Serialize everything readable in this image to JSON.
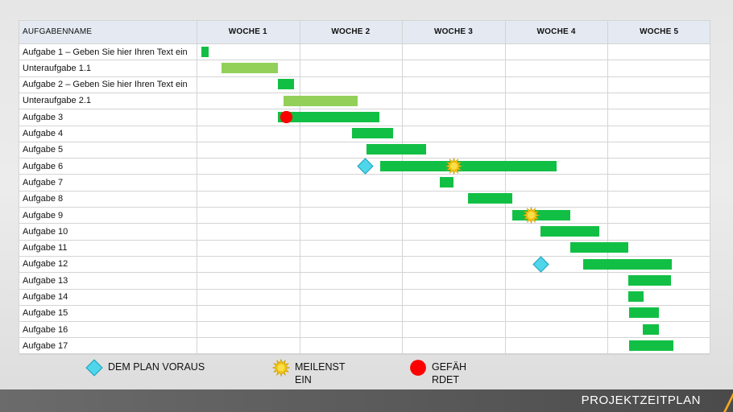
{
  "page": {
    "footer_title": "PROJEKTZEITPLAN"
  },
  "chart_data": {
    "type": "gantt",
    "task_column_header": "AUFGABENNAME",
    "weeks": [
      "WOCHE 1",
      "WOCHE 2",
      "WOCHE 3",
      "WOCHE 4",
      "WOCHE 5"
    ],
    "x_unit": "weeks",
    "x_range": [
      0,
      5
    ],
    "colors": {
      "task": "#12bf45",
      "subtask": "#92d05a",
      "ahead": "#4fd6ea",
      "milestone": "#f6c515",
      "risk": "#ff0000"
    },
    "tasks": [
      {
        "name": "Aufgabe 1 – Geben Sie hier Ihren Text ein",
        "start": 0.05,
        "end": 0.12,
        "kind": "task"
      },
      {
        "name": "Unteraufgabe 1.1",
        "start": 0.24,
        "end": 0.79,
        "kind": "subtask"
      },
      {
        "name": "Aufgabe 2 – Geben Sie hier Ihren Text ein",
        "start": 0.79,
        "end": 0.95,
        "kind": "task"
      },
      {
        "name": "Unteraufgabe 2.1",
        "start": 0.85,
        "end": 1.57,
        "kind": "subtask"
      },
      {
        "name": "Aufgabe 3",
        "start": 0.79,
        "end": 1.78,
        "kind": "task",
        "marker": "risk",
        "marker_at": 0.87
      },
      {
        "name": "Aufgabe 4",
        "start": 1.51,
        "end": 1.91,
        "kind": "task"
      },
      {
        "name": "Aufgabe 5",
        "start": 1.65,
        "end": 2.23,
        "kind": "task"
      },
      {
        "name": "Aufgabe 6",
        "start": 1.79,
        "end": 3.5,
        "kind": "task",
        "marker": "milestone",
        "marker_at": 2.5,
        "ahead_at": 1.64
      },
      {
        "name": "Aufgabe 7",
        "start": 2.37,
        "end": 2.5,
        "kind": "task"
      },
      {
        "name": "Aufgabe 8",
        "start": 2.64,
        "end": 3.07,
        "kind": "task"
      },
      {
        "name": "Aufgabe 9",
        "start": 3.07,
        "end": 3.64,
        "kind": "task",
        "marker": "milestone",
        "marker_at": 3.26
      },
      {
        "name": "Aufgabe 10",
        "start": 3.35,
        "end": 3.92,
        "kind": "task"
      },
      {
        "name": "Aufgabe 11",
        "start": 3.64,
        "end": 4.2,
        "kind": "task"
      },
      {
        "name": "Aufgabe 12",
        "start": 3.76,
        "end": 4.62,
        "kind": "task",
        "ahead_at": 3.35
      },
      {
        "name": "Aufgabe 13",
        "start": 4.2,
        "end": 4.62,
        "kind": "task"
      },
      {
        "name": "Aufgabe 14",
        "start": 4.2,
        "end": 4.35,
        "kind": "task"
      },
      {
        "name": "Aufgabe 15",
        "start": 4.21,
        "end": 4.5,
        "kind": "task"
      },
      {
        "name": "Aufgabe 16",
        "start": 4.34,
        "end": 4.5,
        "kind": "task"
      },
      {
        "name": "Aufgabe 17",
        "start": 4.21,
        "end": 4.64,
        "kind": "task"
      }
    ],
    "legend": [
      {
        "key": "ahead",
        "icon": "diamond-icon",
        "label_lines": [
          "DEM PLAN VORAUS"
        ]
      },
      {
        "key": "milestone",
        "icon": "starburst-icon",
        "label_lines": [
          "MEILENST",
          "EIN"
        ]
      },
      {
        "key": "risk",
        "icon": "circle-icon",
        "label_lines": [
          "GEFÄH",
          "RDET"
        ]
      }
    ]
  }
}
